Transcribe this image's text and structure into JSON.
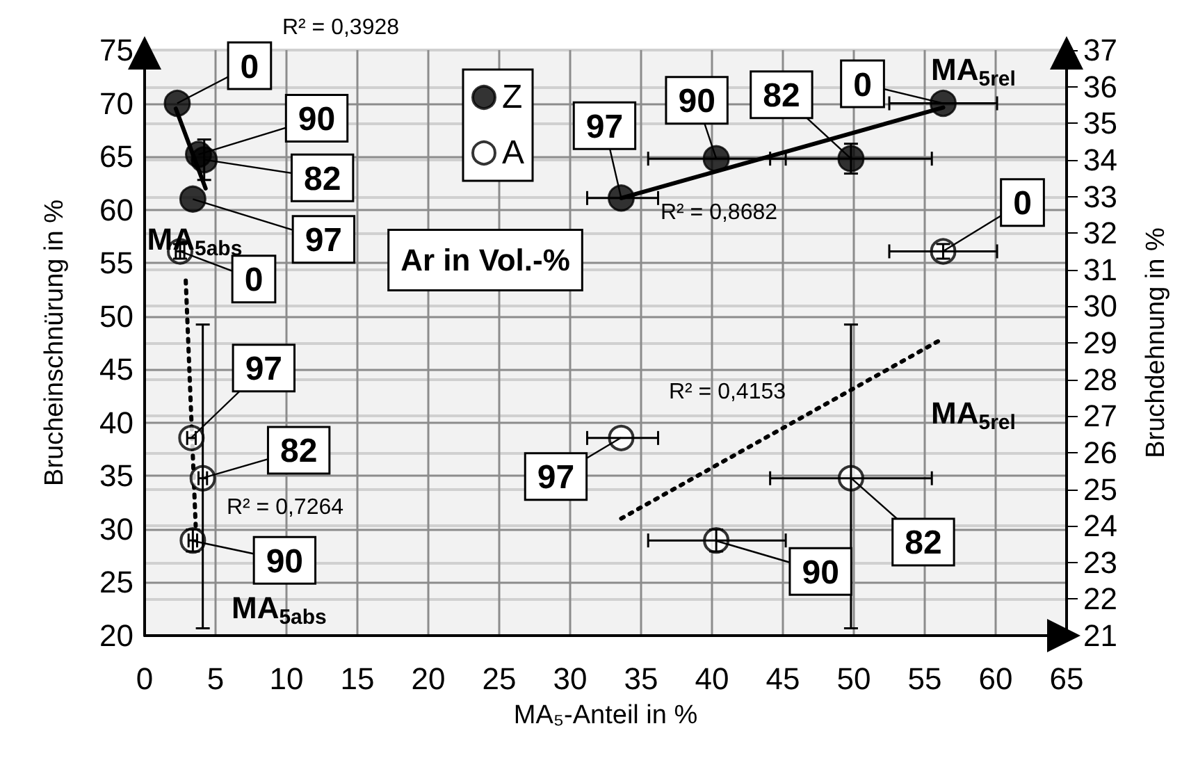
{
  "chart_data": {
    "type": "scatter",
    "xlabel": "MA₅-Anteil in %",
    "ylabel": "Brucheinschnürung in %",
    "y2label": "Bruchdehnung in %",
    "xlim": [
      0,
      65
    ],
    "xticks": [
      0,
      5,
      10,
      15,
      20,
      25,
      30,
      35,
      40,
      45,
      50,
      55,
      60,
      65
    ],
    "ylim": [
      20,
      75
    ],
    "yticks": [
      20,
      25,
      30,
      35,
      40,
      45,
      50,
      55,
      60,
      65,
      70,
      75
    ],
    "y2lim": [
      21,
      37
    ],
    "y2ticks": [
      21,
      22,
      23,
      24,
      25,
      26,
      27,
      28,
      29,
      30,
      31,
      32,
      33,
      34,
      35,
      36,
      37
    ],
    "grid": true,
    "legend": "top left",
    "series": [
      {
        "name": "Z",
        "marker": "circle",
        "color": "#000000",
        "x": [
          2.3,
          3.8,
          4.2,
          3.4,
          33.6,
          40.3,
          49.8,
          56.3
        ],
        "values": [
          70,
          65.2,
          64.7,
          61.0,
          61.1,
          64.8,
          64.8,
          70
        ],
        "errors": [
          null,
          null,
          1.9,
          null,
          null,
          null,
          1.4,
          null
        ],
        "xerrors": [
          null,
          null,
          null,
          null,
          [
            31.2,
            36.2
          ],
          [
            35.5,
            45.2
          ],
          [
            44.1,
            55.5
          ],
          [
            52.5,
            60.1
          ]
        ]
      },
      {
        "name": "A",
        "marker": "circle",
        "color": "#000000",
        "axis": "y2",
        "x": [
          2.5,
          3.3,
          4.1,
          3.4,
          33.6,
          40.3,
          49.8,
          56.3
        ],
        "values": [
          31.5,
          26.4,
          25.3,
          23.6,
          26.4,
          23.6,
          25.3,
          31.5
        ],
        "errors": [
          0.2,
          null,
          [
            21.2,
            29.5
          ],
          0.3,
          null,
          0.3,
          [
            21.2,
            29.5
          ],
          0.2
        ],
        "xerrors": [
          0.3,
          0.3,
          0.3,
          0.3,
          [
            31.2,
            36.2
          ],
          [
            35.5,
            45.2
          ],
          [
            44.1,
            55.5
          ],
          [
            52.5,
            60.1
          ]
        ]
      },
      {
        "type": "line",
        "color": "#000000",
        "line_style": "solid",
        "x": [
          2.2,
          4.3
        ],
        "values": [
          69.5,
          62
        ]
      },
      {
        "type": "line",
        "color": "#000000",
        "line_style": "solid",
        "x": [
          33.6,
          56.3
        ],
        "values": [
          61.1,
          69.6
        ]
      },
      {
        "type": "line",
        "color": "#000000",
        "line_style": "dotted",
        "axis": "y2",
        "x": [
          2.9,
          3.6
        ],
        "values": [
          30.7,
          24.0
        ]
      },
      {
        "type": "line",
        "color": "#000000",
        "line_style": "dotted",
        "axis": "y2",
        "x": [
          33.6,
          56.2
        ],
        "values": [
          24.2,
          29.1
        ]
      }
    ],
    "annotations": [
      "R² = 0,3928",
      "R² = 0,8682",
      "R² = 0,4153",
      "R² = 0,7264",
      "MA$_{5abs}$",
      {
        "text": "MA$_{5abs}$",
        "x": 3.5,
        "y": 29
      },
      "MA$_{5rel}$",
      "MA$_{5rel}$",
      "Ar in Vol.-%",
      {
        "text": "0",
        "x": 2.3,
        "y": 70
      },
      {
        "text": "90",
        "x": 3.8,
        "y": 65.2
      },
      {
        "text": "82",
        "x": 4.2,
        "y": 64.7
      },
      {
        "text": "97",
        "x": 3.4,
        "y": 61.0
      },
      {
        "text": "97",
        "x": 33.6,
        "y": 61.1
      },
      {
        "text": "90",
        "x": 40.3,
        "y": 64.8
      },
      {
        "text": "82",
        "x": 49.8,
        "y": 64.8
      },
      {
        "text": "0",
        "x": 56.3,
        "y": 70
      },
      {
        "text": "0",
        "x": 2.5,
        "y": 56.1
      },
      {
        "text": "97",
        "x": 3.3,
        "y": 38.6
      },
      {
        "text": "82",
        "x": 4.1,
        "y": 34.8
      },
      {
        "text": "90",
        "x": 3.4,
        "y": 28.9
      },
      {
        "text": "97",
        "x": 33.6,
        "y": 38.6
      },
      {
        "text": "90",
        "x": 40.3,
        "y": 28.9
      },
      {
        "text": "82",
        "x": 49.8,
        "y": 34.8
      },
      {
        "text": "0",
        "x": 56.3,
        "y": 56.1
      }
    ]
  }
}
